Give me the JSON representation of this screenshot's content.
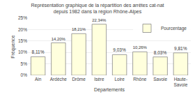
{
  "chart_data": {
    "type": "bar",
    "title": "Représentation graphique de la répartition des arrêtes cat-nat\ndepuis 1982 dans la région Rhône-Alpes",
    "categories": [
      "Ain",
      "Ardèche",
      "Drôme",
      "Isère",
      "Loire",
      "Rhône",
      "Savoie",
      "Haute-\nSavoie"
    ],
    "series": [
      {
        "name": "Pourcentage",
        "color": "#FFFFDD",
        "values": [
          8.11,
          14.2,
          18.21,
          22.34,
          9.03,
          10.26,
          8.03,
          9.81
        ],
        "value_labels": [
          "8,11%",
          "14,20%",
          "18,21%",
          "22,34%",
          "9,03%",
          "10,26%",
          "8,03%",
          "9,81%"
        ]
      }
    ],
    "xlabel": "Départements",
    "ylabel": "Fréquence",
    "ylim": [
      0,
      25
    ],
    "yticks": [
      {
        "value": 0,
        "label": "0%"
      },
      {
        "value": 5,
        "label": "5%"
      },
      {
        "value": 10,
        "label": "10%"
      },
      {
        "value": 15,
        "label": "15%"
      },
      {
        "value": 20,
        "label": "20%"
      },
      {
        "value": 25,
        "label": "25%"
      }
    ],
    "grid": true,
    "data_labels": true,
    "legend": "top right"
  }
}
